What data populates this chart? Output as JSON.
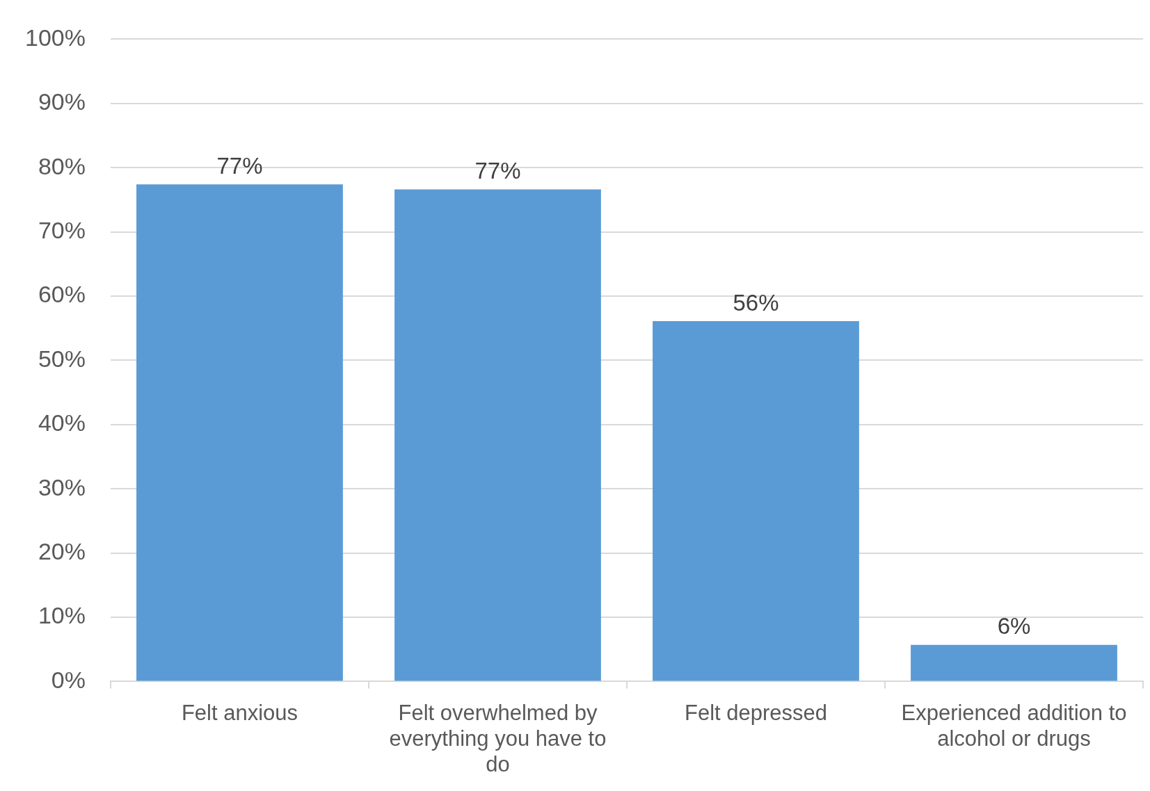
{
  "chart_data": {
    "type": "bar",
    "categories": [
      "Felt anxious",
      "Felt overwhelmed by everything you have to do",
      "Felt depressed",
      "Experienced addition to alcohol or drugs"
    ],
    "values": [
      77.4,
      76.6,
      56.1,
      5.7
    ],
    "value_labels": [
      "77%",
      "77%",
      "56%",
      "6%"
    ],
    "color": "#5b9bd5",
    "ylim": [
      0,
      100
    ],
    "yticks": [
      {
        "value": 0,
        "label": "0%"
      },
      {
        "value": 10,
        "label": "10%"
      },
      {
        "value": 20,
        "label": "20%"
      },
      {
        "value": 30,
        "label": "30%"
      },
      {
        "value": 40,
        "label": "40%"
      },
      {
        "value": 50,
        "label": "50%"
      },
      {
        "value": 60,
        "label": "60%"
      },
      {
        "value": 70,
        "label": "70%"
      },
      {
        "value": 80,
        "label": "80%"
      },
      {
        "value": 90,
        "label": "90%"
      },
      {
        "value": 100,
        "label": "100%"
      }
    ],
    "grid": "y",
    "legend": false
  }
}
